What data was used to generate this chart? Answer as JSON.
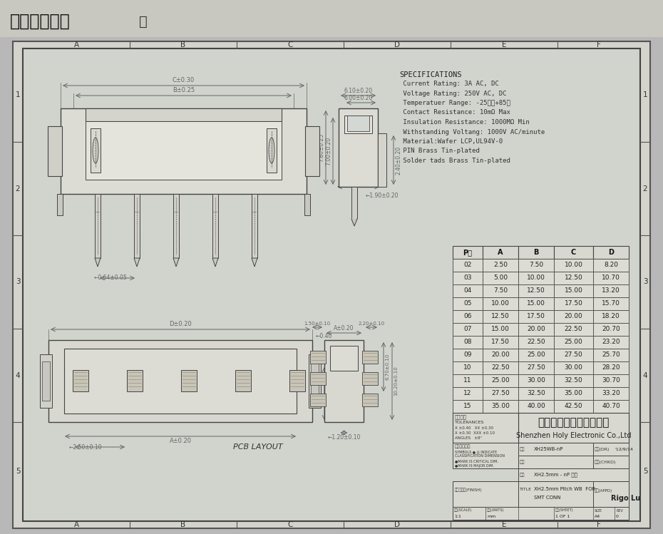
{
  "bg_color": "#b8b8b8",
  "paper_bg": "#d8d8d0",
  "drawing_bg": "#d0d4d0",
  "title_bar_color": "#c0c0b8",
  "title_text": "在线图纸下载",
  "line_color": "#555555",
  "dim_color": "#666666",
  "draw_color": "#444444",
  "specs_title": "SPECIFICATIONS",
  "specs_lines": [
    " Current Rating: 3A AC, DC",
    " Voltage Rating: 250V AC, DC",
    " Temperatuer Range: -25℃～+85℃",
    " Contact Resistance: 10mΩ Max",
    " Insulation Resistance: 1000MΩ Min",
    " Withstanding Voltang: 1000V AC/minute",
    " Material:Wafer LCP,UL94V-0",
    " PIN Brass Tin-plated",
    " Solder tads Brass Tin-plated"
  ],
  "table_headers": [
    "P数",
    "A",
    "B",
    "C",
    "D"
  ],
  "table_rows": [
    [
      "02",
      "2.50",
      "7.50",
      "10.00",
      "8.20"
    ],
    [
      "03",
      "5.00",
      "10.00",
      "12.50",
      "10.70"
    ],
    [
      "04",
      "7.50",
      "12.50",
      "15.00",
      "13.20"
    ],
    [
      "05",
      "10.00",
      "15.00",
      "17.50",
      "15.70"
    ],
    [
      "06",
      "12.50",
      "17.50",
      "20.00",
      "18.20"
    ],
    [
      "07",
      "15.00",
      "20.00",
      "22.50",
      "20.70"
    ],
    [
      "08",
      "17.50",
      "22.50",
      "25.00",
      "23.20"
    ],
    [
      "09",
      "20.00",
      "25.00",
      "27.50",
      "25.70"
    ],
    [
      "10",
      "22.50",
      "27.50",
      "30.00",
      "28.20"
    ],
    [
      "11",
      "25.00",
      "30.00",
      "32.50",
      "30.70"
    ],
    [
      "12",
      "27.50",
      "32.50",
      "35.00",
      "33.20"
    ],
    [
      "15",
      "35.00",
      "40.00",
      "42.50",
      "40.70"
    ]
  ],
  "company_cn": "深圳市宏利电子有限公司",
  "company_en": "Shenzhen Holy Electronic Co.,Ltd",
  "grid_labels_x": [
    "A",
    "B",
    "C",
    "D",
    "E",
    "F"
  ],
  "grid_labels_y": [
    "1",
    "2",
    "3",
    "4",
    "5"
  ],
  "pcb_layout_text": "PCB LAYOUT"
}
